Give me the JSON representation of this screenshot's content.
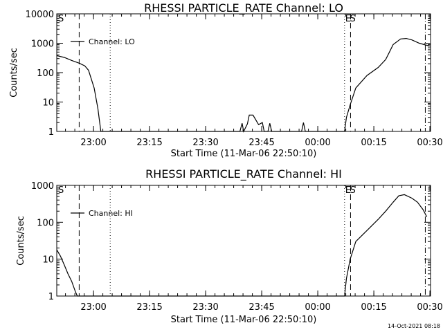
{
  "chart_data": [
    {
      "type": "line",
      "title": "RHESSI PARTICLE_RATE Channel: LO",
      "xlabel": "Start Time (11-Mar-06 22:50:10)",
      "ylabel": "Counts/sec",
      "yscale": "log",
      "ylim": [
        1,
        10000
      ],
      "xlim_minutes_after_start": [
        0,
        100
      ],
      "x_tick_labels": [
        "23:00",
        "23:15",
        "23:30",
        "23:45",
        "00:00",
        "00:15",
        "00:30"
      ],
      "y_tick_labels": [
        "1",
        "10",
        "100",
        "1000",
        "10000"
      ],
      "grid": false,
      "legend": "top-left",
      "series": [
        {
          "name": "Channel: LO",
          "x_minutes": [
            0,
            2,
            4,
            6,
            7.5,
            8.5,
            10,
            11,
            11.8,
            49,
            49.6,
            50,
            51,
            51.5,
            52.5,
            54,
            55,
            55.5,
            56.5,
            57,
            57.5,
            65.5,
            66,
            66.5,
            77,
            77.5,
            78.5,
            80,
            83,
            86,
            88,
            89,
            90,
            92,
            93.5,
            95,
            97,
            99,
            100
          ],
          "y": [
            380,
            330,
            260,
            210,
            170,
            120,
            30,
            6,
            1,
            1,
            1.9,
            1,
            1.8,
            3.6,
            3.6,
            1.7,
            2,
            1,
            1,
            1.9,
            1,
            1,
            2,
            1,
            1,
            3,
            8,
            30,
            80,
            150,
            280,
            500,
            900,
            1400,
            1450,
            1300,
            1000,
            850,
            800
          ]
        }
      ],
      "annotations": [
        {
          "label": "S",
          "style": "dashed",
          "x_minutes": 6
        },
        {
          "label": "",
          "style": "dotted",
          "x_minutes": 14.3
        },
        {
          "label": "E",
          "style": "dotted",
          "x_minutes": 77
        },
        {
          "label": "S",
          "style": "dashed",
          "x_minutes": 78.6
        },
        {
          "label": "",
          "style": "dash-dot",
          "x_minutes": 98.6
        }
      ]
    },
    {
      "type": "line",
      "title": "RHESSI PARTICLE_RATE Channel: HI",
      "xlabel": "Start Time (11-Mar-06 22:50:10)",
      "ylabel": "Counts/sec",
      "yscale": "log",
      "ylim": [
        1,
        1000
      ],
      "xlim_minutes_after_start": [
        0,
        100
      ],
      "x_tick_labels": [
        "23:00",
        "23:15",
        "23:30",
        "23:45",
        "00:00",
        "00:15",
        "00:30"
      ],
      "y_tick_labels": [
        "1",
        "10",
        "100",
        "1000"
      ],
      "grid": false,
      "legend": "top-left",
      "series": [
        {
          "name": "Channel: HI",
          "x_minutes": [
            0,
            1,
            2,
            3,
            4,
            5,
            5.5,
            77,
            77.5,
            78.5,
            80,
            83,
            86,
            88,
            90,
            91.5,
            93,
            95,
            96.5,
            98,
            99
          ],
          "y": [
            18,
            12,
            7,
            4,
            2.5,
            1.3,
            1,
            1,
            3,
            10,
            30,
            60,
            120,
            200,
            350,
            520,
            560,
            450,
            350,
            220,
            140
          ]
        }
      ],
      "annotations": [
        {
          "label": "S",
          "style": "dashed",
          "x_minutes": 6
        },
        {
          "label": "",
          "style": "dotted",
          "x_minutes": 14.3
        },
        {
          "label": "E",
          "style": "dotted",
          "x_minutes": 77
        },
        {
          "label": "S",
          "style": "dashed",
          "x_minutes": 78.6
        },
        {
          "label": "",
          "style": "dash-dot",
          "x_minutes": 98.6
        }
      ]
    }
  ],
  "footer": {
    "timestamp": "14-Oct-2021 08:18"
  }
}
